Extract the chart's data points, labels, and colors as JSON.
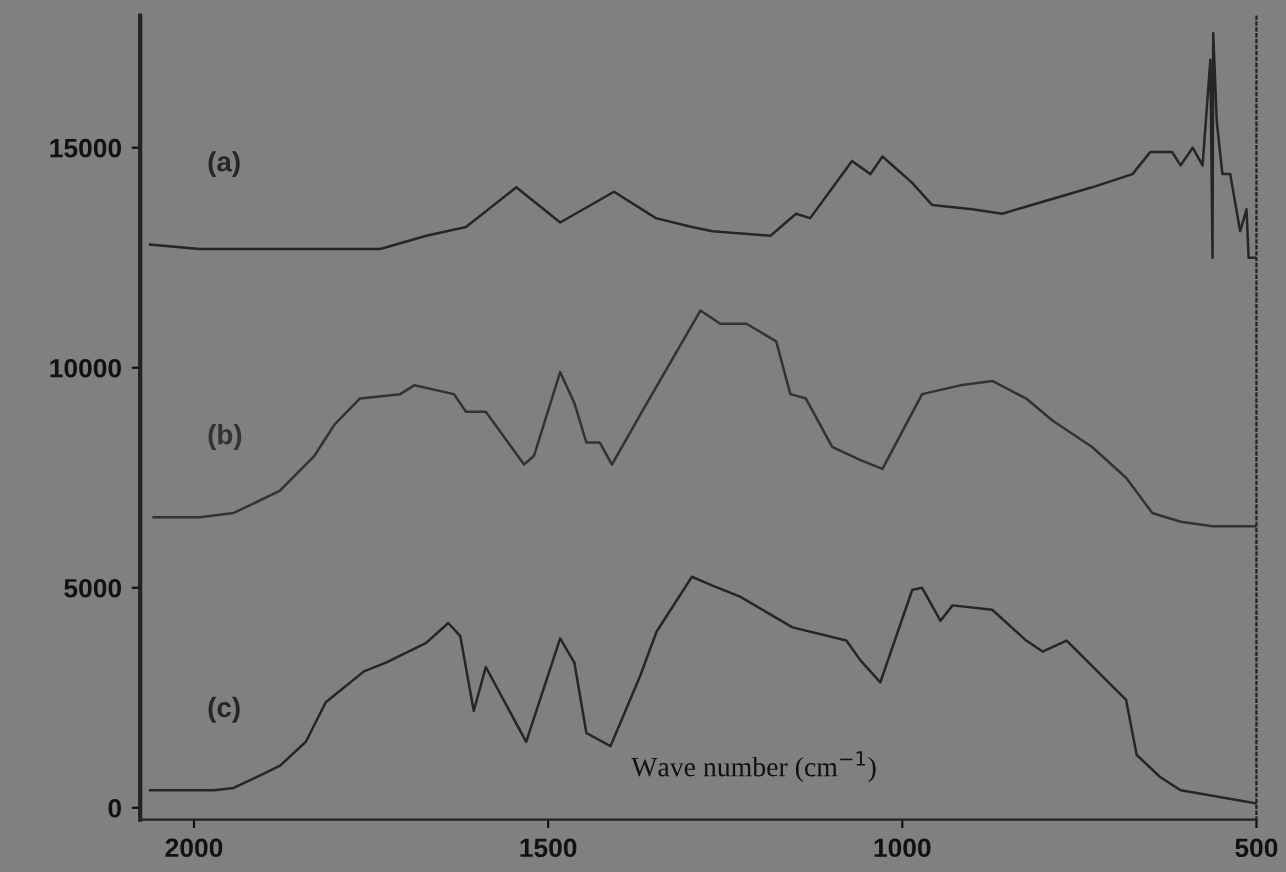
{
  "chart_data": {
    "type": "line",
    "xlabel": "Wave number (cm$^{−1}$)",
    "xlim": [
      2076,
      500
    ],
    "ylim": [
      -270,
      18000
    ],
    "xticks": [
      2000,
      1500,
      1000,
      500
    ],
    "yticks": [
      0,
      5000,
      10000,
      15000
    ],
    "grid": false,
    "legend": false,
    "marker": "none",
    "line_style": "solid",
    "series": [
      {
        "name": "(a)",
        "color": "#262626",
        "x": [
          2062,
          1992,
          1737,
          1672,
          1616,
          1545,
          1483,
          1407,
          1348,
          1297,
          1268,
          1186,
          1150,
          1130,
          1071,
          1045,
          1028,
          986,
          958,
          901,
          859,
          732,
          675,
          650,
          619,
          607,
          590,
          576,
          565,
          562,
          561,
          556,
          548,
          537,
          523,
          514,
          511,
          500
        ],
        "values": [
          12800,
          12700,
          12700,
          13000,
          13200,
          14100,
          13300,
          14000,
          13400,
          13200,
          13100,
          13000,
          13500,
          13400,
          14700,
          14400,
          14800,
          14200,
          13700,
          13600,
          13500,
          14100,
          14400,
          14900,
          14900,
          14600,
          15000,
          14600,
          17000,
          12500,
          17600,
          15600,
          14400,
          14400,
          13100,
          13600,
          12500,
          12500
        ]
      },
      {
        "name": "(b)",
        "color": "#333333",
        "x": [
          2057,
          1992,
          1944,
          1879,
          1830,
          1802,
          1766,
          1709,
          1689,
          1633,
          1616,
          1588,
          1534,
          1520,
          1483,
          1463,
          1446,
          1427,
          1410,
          1364,
          1285,
          1257,
          1220,
          1178,
          1158,
          1136,
          1099,
          1059,
          1028,
          972,
          918,
          873,
          825,
          788,
          732,
          684,
          647,
          607,
          562,
          500
        ],
        "values": [
          6600,
          6600,
          6700,
          7200,
          8000,
          8700,
          9300,
          9400,
          9600,
          9400,
          9000,
          9000,
          7800,
          8000,
          9900,
          9200,
          8300,
          8300,
          7800,
          9100,
          11300,
          11000,
          11000,
          10600,
          9400,
          9300,
          8200,
          7900,
          7700,
          9400,
          9600,
          9700,
          9300,
          8800,
          8200,
          7500,
          6700,
          6500,
          6400,
          6400
        ]
      },
      {
        "name": "(c)",
        "color": "#262626",
        "x": [
          2062,
          1972,
          1944,
          1879,
          1842,
          1814,
          1760,
          1729,
          1672,
          1641,
          1624,
          1605,
          1588,
          1531,
          1483,
          1463,
          1446,
          1412,
          1370,
          1347,
          1297,
          1268,
          1229,
          1155,
          1079,
          1059,
          1031,
          986,
          972,
          946,
          929,
          873,
          825,
          802,
          768,
          684,
          669,
          636,
          607,
          500
        ],
        "values": [
          400,
          400,
          450,
          950,
          1500,
          2400,
          3100,
          3300,
          3750,
          4200,
          3900,
          2200,
          3200,
          1500,
          3850,
          3300,
          1700,
          1400,
          3000,
          4000,
          5250,
          5050,
          4800,
          4100,
          3800,
          3350,
          2850,
          4950,
          5000,
          4250,
          4600,
          4500,
          3800,
          3550,
          3800,
          2450,
          1200,
          700,
          400,
          100
        ]
      }
    ]
  }
}
